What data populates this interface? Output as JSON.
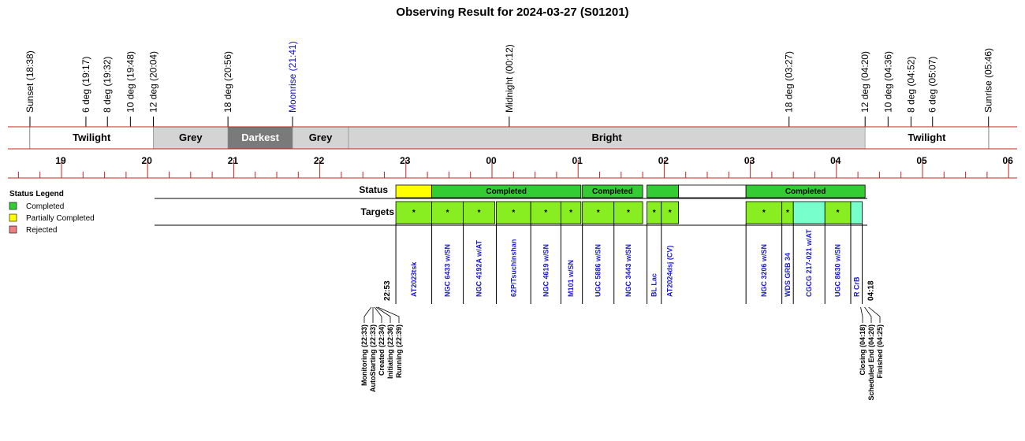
{
  "title": "Observing Result for 2024-03-27 (S01201)",
  "colors": {
    "timeline": "#cc2222",
    "grey_band": "#d4d4d4",
    "darkest_band": "#7a7a7a",
    "bright_band": "#d4d4d4",
    "completed": "#33cc33",
    "partial": "#ffff00",
    "rejected": "#f08080",
    "target_green": "#88ee22",
    "target_cyan": "#77ffcc",
    "target_text": "#1a1ad0",
    "moon_text": "#1010c0"
  },
  "events": [
    {
      "label": "Sunset (18:38)",
      "time": "18:38"
    },
    {
      "label": "6 deg (19:17)",
      "time": "19:17"
    },
    {
      "label": "8 deg (19:32)",
      "time": "19:32"
    },
    {
      "label": "10 deg (19:48)",
      "time": "19:48"
    },
    {
      "label": "12 deg (20:04)",
      "time": "20:04"
    },
    {
      "label": "18 deg (20:56)",
      "time": "20:56"
    },
    {
      "label": "Moonrise (21:41)",
      "time": "21:41",
      "moon": true
    },
    {
      "label": "Midnight (00:12)",
      "time": "00:12"
    },
    {
      "label": "18 deg (03:27)",
      "time": "03:27"
    },
    {
      "label": "12 deg (04:20)",
      "time": "04:20"
    },
    {
      "label": "10 deg (04:36)",
      "time": "04:36"
    },
    {
      "label": "8 deg (04:52)",
      "time": "04:52"
    },
    {
      "label": "6 deg (05:07)",
      "time": "05:07"
    },
    {
      "label": "Sunrise (05:46)",
      "time": "05:46"
    }
  ],
  "bands": [
    {
      "label": "Twilight",
      "start": "18:38",
      "end": "20:04",
      "kind": "white"
    },
    {
      "label": "Grey",
      "start": "20:04",
      "end": "20:56",
      "kind": "grey"
    },
    {
      "label": "Darkest",
      "start": "20:56",
      "end": "21:41",
      "kind": "darkest"
    },
    {
      "label": "Grey",
      "start": "21:41",
      "end": "22:20",
      "kind": "grey"
    },
    {
      "label": "Bright",
      "start": "22:20",
      "end": "04:20",
      "kind": "grey"
    },
    {
      "label": "Twilight",
      "start": "04:20",
      "end": "05:46",
      "kind": "white"
    }
  ],
  "hour_labels": [
    "19",
    "20",
    "21",
    "22",
    "23",
    "00",
    "01",
    "02",
    "03",
    "04",
    "05",
    "06"
  ],
  "status_label": "Status",
  "targets_label": "Targets",
  "status_segments": [
    {
      "start": "22:53",
      "end": "23:18",
      "status": "partial",
      "label": ""
    },
    {
      "start": "23:18",
      "end": "01:02",
      "status": "completed",
      "label": "Completed"
    },
    {
      "start": "01:03",
      "end": "01:45",
      "status": "completed",
      "label": "Completed"
    },
    {
      "start": "01:48",
      "end": "02:10",
      "status": "completed",
      "label": ""
    },
    {
      "start": "02:10",
      "end": "02:57",
      "status": "none",
      "label": ""
    },
    {
      "start": "02:57",
      "end": "04:20",
      "status": "completed",
      "label": "Completed"
    }
  ],
  "targets": [
    {
      "name": "AT2023tsk",
      "start": "22:53",
      "end": "23:18",
      "color": "green",
      "mark": "*"
    },
    {
      "name": "NGC 6433 w/SN",
      "start": "23:18",
      "end": "23:40",
      "color": "green",
      "mark": "*"
    },
    {
      "name": "NGC 4192A w/AT",
      "start": "23:40",
      "end": "24:02",
      "color": "green",
      "mark": "*"
    },
    {
      "name": "62P/Tsuchinshan",
      "start": "24:03",
      "end": "24:27",
      "color": "green",
      "mark": "*"
    },
    {
      "name": "NGC 4619 w/SN",
      "start": "24:27",
      "end": "24:48",
      "color": "green",
      "mark": "*"
    },
    {
      "name": "M101 w/SN",
      "start": "24:48",
      "end": "25:02",
      "color": "green",
      "mark": "*"
    },
    {
      "name": "UGC 5886 w/SN",
      "start": "25:03",
      "end": "25:25",
      "color": "green",
      "mark": "*"
    },
    {
      "name": "NGC 3443 w/SN",
      "start": "25:25",
      "end": "25:45",
      "color": "green",
      "mark": "*"
    },
    {
      "name": "BL Lac",
      "start": "25:48",
      "end": "25:58",
      "color": "green",
      "mark": "*"
    },
    {
      "name": "AT2024dsj (CV)",
      "start": "25:58",
      "end": "26:10",
      "color": "green",
      "mark": "*"
    },
    {
      "name": "NGC 3206 w/SN",
      "start": "26:57",
      "end": "27:22",
      "color": "green",
      "mark": "*"
    },
    {
      "name": "WDS GRB 34",
      "start": "27:22",
      "end": "27:30",
      "color": "green",
      "mark": "*"
    },
    {
      "name": "CGCG 217-021 w/AT",
      "start": "27:30",
      "end": "27:52",
      "color": "cyan",
      "mark": ""
    },
    {
      "name": "UGC 8630 w/SN",
      "start": "27:52",
      "end": "28:10",
      "color": "green",
      "mark": "*"
    },
    {
      "name": "R CrB",
      "start": "28:10",
      "end": "28:18",
      "color": "cyan",
      "mark": ""
    }
  ],
  "start_time_label": "22:53",
  "end_time_label": "04:18",
  "start_steps": [
    {
      "label": "Monitoring (22:33)"
    },
    {
      "label": "AutoStarting (22:33)"
    },
    {
      "label": "Created (22:34)"
    },
    {
      "label": "Initiating (22:36)"
    },
    {
      "label": "Running (22:39)"
    }
  ],
  "end_steps": [
    {
      "label": "Closing (04:18)"
    },
    {
      "label": "Scheduled End (04:20)"
    },
    {
      "label": "Finished (04:25)"
    }
  ],
  "legend": {
    "title": "Status Legend",
    "items": [
      {
        "label": "Completed",
        "color": "#33cc33"
      },
      {
        "label": "Partially Completed",
        "color": "#ffff00"
      },
      {
        "label": "Rejected",
        "color": "#f08080"
      }
    ]
  }
}
